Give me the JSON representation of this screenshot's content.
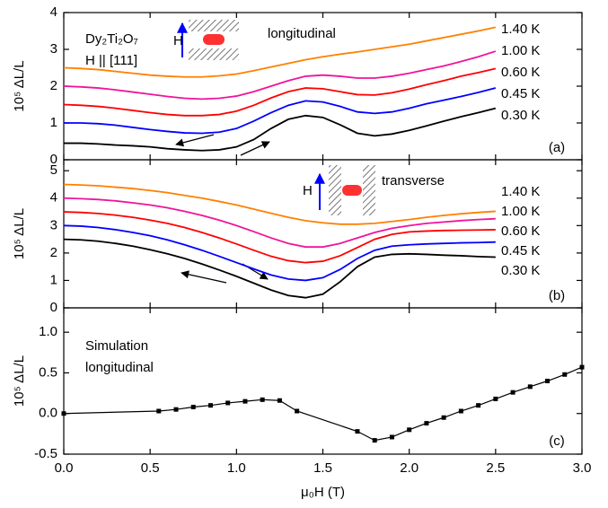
{
  "chart_data": [
    {
      "type": "line",
      "ylabel": "10⁵ ΔL/L",
      "xlim": [
        0,
        3
      ],
      "ylim": [
        0,
        4
      ],
      "yticks": [
        0,
        1,
        2,
        3,
        4
      ],
      "annotations": [
        "Dy₂Ti₂O₇",
        "H || [111]",
        "H",
        "longitudinal",
        "(a)"
      ],
      "x": [
        0,
        0.1,
        0.2,
        0.3,
        0.4,
        0.5,
        0.6,
        0.7,
        0.8,
        0.9,
        1.0,
        1.1,
        1.2,
        1.3,
        1.4,
        1.5,
        1.6,
        1.7,
        1.8,
        1.9,
        2.0,
        2.1,
        2.2,
        2.3,
        2.4,
        2.5
      ],
      "series": [
        {
          "name": "1.40 K",
          "color": "#ff8000",
          "values": [
            2.5,
            2.48,
            2.45,
            2.4,
            2.35,
            2.3,
            2.27,
            2.25,
            2.25,
            2.28,
            2.33,
            2.42,
            2.52,
            2.62,
            2.72,
            2.8,
            2.87,
            2.93,
            3.0,
            3.07,
            3.14,
            3.23,
            3.32,
            3.41,
            3.5,
            3.6
          ]
        },
        {
          "name": "1.00 K",
          "color": "#f0149a",
          "values": [
            2.0,
            1.98,
            1.95,
            1.9,
            1.84,
            1.78,
            1.72,
            1.67,
            1.65,
            1.67,
            1.73,
            1.85,
            2.0,
            2.15,
            2.27,
            2.3,
            2.27,
            2.22,
            2.22,
            2.27,
            2.35,
            2.45,
            2.55,
            2.67,
            2.8,
            2.95
          ]
        },
        {
          "name": "0.60 K",
          "color": "#ff0000",
          "values": [
            1.5,
            1.48,
            1.45,
            1.4,
            1.34,
            1.28,
            1.23,
            1.2,
            1.2,
            1.23,
            1.32,
            1.48,
            1.68,
            1.85,
            1.95,
            1.93,
            1.85,
            1.77,
            1.76,
            1.82,
            1.92,
            2.04,
            2.15,
            2.27,
            2.37,
            2.48
          ]
        },
        {
          "name": "0.45 K",
          "color": "#0000ff",
          "values": [
            1.0,
            1.0,
            0.98,
            0.94,
            0.88,
            0.82,
            0.77,
            0.73,
            0.72,
            0.75,
            0.85,
            1.05,
            1.28,
            1.48,
            1.6,
            1.57,
            1.45,
            1.3,
            1.26,
            1.3,
            1.4,
            1.52,
            1.62,
            1.72,
            1.83,
            1.95
          ]
        },
        {
          "name": "0.30 K",
          "color": "#000000",
          "values": [
            0.45,
            0.45,
            0.43,
            0.4,
            0.38,
            0.35,
            0.3,
            0.27,
            0.25,
            0.27,
            0.35,
            0.55,
            0.85,
            1.1,
            1.2,
            1.15,
            0.95,
            0.72,
            0.65,
            0.7,
            0.8,
            0.92,
            1.05,
            1.17,
            1.28,
            1.4
          ]
        }
      ]
    },
    {
      "type": "line",
      "ylabel": "10⁵ ΔL/L",
      "xlim": [
        0,
        3
      ],
      "ylim": [
        0,
        5.4
      ],
      "yticks": [
        0,
        1,
        2,
        3,
        4,
        5
      ],
      "annotations": [
        "H",
        "transverse",
        "(b)"
      ],
      "x": [
        0,
        0.1,
        0.2,
        0.3,
        0.4,
        0.5,
        0.6,
        0.7,
        0.8,
        0.9,
        1.0,
        1.1,
        1.2,
        1.3,
        1.4,
        1.5,
        1.6,
        1.7,
        1.8,
        1.9,
        2.0,
        2.1,
        2.2,
        2.3,
        2.4,
        2.5
      ],
      "series": [
        {
          "name": "1.40 K",
          "color": "#ff8000",
          "values": [
            4.5,
            4.48,
            4.45,
            4.4,
            4.35,
            4.28,
            4.2,
            4.1,
            4.0,
            3.88,
            3.75,
            3.6,
            3.45,
            3.3,
            3.18,
            3.1,
            3.05,
            3.05,
            3.08,
            3.15,
            3.22,
            3.3,
            3.37,
            3.43,
            3.48,
            3.52
          ]
        },
        {
          "name": "1.00 K",
          "color": "#f0149a",
          "values": [
            4.0,
            3.98,
            3.95,
            3.9,
            3.83,
            3.75,
            3.65,
            3.52,
            3.37,
            3.2,
            3.0,
            2.78,
            2.55,
            2.35,
            2.22,
            2.22,
            2.35,
            2.55,
            2.75,
            2.9,
            3.0,
            3.08,
            3.13,
            3.18,
            3.22,
            3.25
          ]
        },
        {
          "name": "0.60 K",
          "color": "#ff0000",
          "values": [
            3.5,
            3.48,
            3.44,
            3.38,
            3.3,
            3.2,
            3.08,
            2.93,
            2.75,
            2.55,
            2.33,
            2.1,
            1.88,
            1.72,
            1.65,
            1.7,
            1.9,
            2.2,
            2.5,
            2.68,
            2.77,
            2.8,
            2.82,
            2.83,
            2.84,
            2.85
          ]
        },
        {
          "name": "0.45 K",
          "color": "#0000ff",
          "values": [
            3.0,
            2.98,
            2.93,
            2.85,
            2.75,
            2.63,
            2.48,
            2.3,
            2.1,
            1.88,
            1.65,
            1.42,
            1.2,
            1.05,
            1.0,
            1.1,
            1.4,
            1.8,
            2.1,
            2.25,
            2.3,
            2.33,
            2.35,
            2.37,
            2.38,
            2.4
          ]
        },
        {
          "name": "0.30 K",
          "color": "#000000",
          "values": [
            2.5,
            2.48,
            2.43,
            2.35,
            2.25,
            2.12,
            1.97,
            1.8,
            1.6,
            1.38,
            1.15,
            0.9,
            0.65,
            0.45,
            0.37,
            0.5,
            0.95,
            1.5,
            1.85,
            1.95,
            1.97,
            1.95,
            1.92,
            1.9,
            1.87,
            1.85
          ]
        }
      ]
    },
    {
      "type": "line",
      "ylabel": "10⁵ ΔL/L",
      "xlabel": "μ₀H (T)",
      "xlim": [
        0,
        3
      ],
      "ylim": [
        -0.5,
        1.3
      ],
      "xticks": [
        {
          "value": 0,
          "label": "0.0"
        },
        0.5,
        {
          "value": 1,
          "label": "1.0"
        },
        1.5,
        {
          "value": 2,
          "label": "2.0"
        },
        2.5,
        {
          "value": 3,
          "label": "3.0"
        }
      ],
      "yticks": [
        -0.5,
        {
          "value": 0,
          "label": "0.0"
        },
        0.5,
        {
          "value": 1,
          "label": "1.0"
        }
      ],
      "annotations": [
        "Simulation",
        "longitudinal",
        "(c)"
      ],
      "x": [
        0,
        0.55,
        0.65,
        0.75,
        0.85,
        0.95,
        1.05,
        1.15,
        1.25,
        1.35,
        1.7,
        1.8,
        1.9,
        2.0,
        2.1,
        2.2,
        2.3,
        2.4,
        2.5,
        2.6,
        2.7,
        2.8,
        2.9,
        3.0
      ],
      "series": [
        {
          "color": "#000000",
          "values": [
            0.0,
            0.03,
            0.05,
            0.08,
            0.1,
            0.13,
            0.15,
            0.17,
            0.16,
            0.03,
            -0.22,
            -0.33,
            -0.29,
            -0.2,
            -0.12,
            -0.05,
            0.03,
            0.1,
            0.18,
            0.26,
            0.33,
            0.4,
            0.48,
            0.57
          ]
        }
      ]
    }
  ]
}
